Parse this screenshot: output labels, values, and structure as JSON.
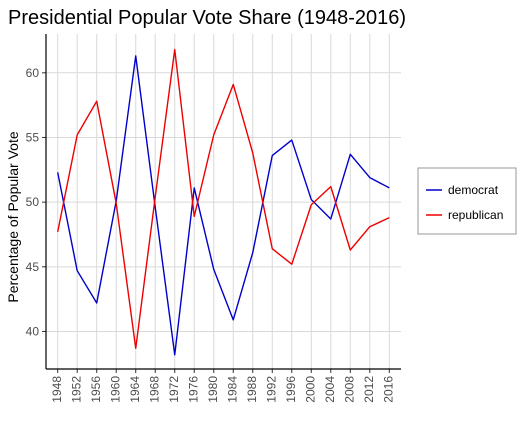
{
  "chart_data": {
    "type": "line",
    "title": "Presidential Popular Vote Share (1948-2016)",
    "xlabel": "",
    "ylabel": "Percentage of Popular Vote",
    "x": [
      1948,
      1952,
      1956,
      1960,
      1964,
      1968,
      1972,
      1976,
      1980,
      1984,
      1988,
      1992,
      1996,
      2000,
      2004,
      2008,
      2012,
      2016
    ],
    "x_tick_labels": [
      "1948",
      "1952",
      "1956",
      "1960",
      "1964",
      "1968",
      "1972",
      "1976",
      "1980",
      "1984",
      "1988",
      "1992",
      "1996",
      "2000",
      "2004",
      "2008",
      "2012",
      "2016"
    ],
    "y_tick_labels": [
      "40",
      "45",
      "50",
      "55",
      "60"
    ],
    "y_ticks": [
      40,
      45,
      50,
      55,
      60
    ],
    "ylim": [
      37.1,
      63.0
    ],
    "xlim": [
      1945.6,
      2018.4
    ],
    "grid": true,
    "legend_position": "right",
    "series": [
      {
        "name": "democrat",
        "color": "#0000cc",
        "values": [
          52.3,
          44.7,
          42.2,
          50.1,
          61.3,
          49.6,
          38.2,
          51.1,
          44.8,
          40.9,
          46.1,
          53.6,
          54.8,
          50.2,
          48.7,
          53.7,
          51.9,
          51.1
        ]
      },
      {
        "name": "republican",
        "color": "#ee0000",
        "values": [
          47.7,
          55.2,
          57.8,
          49.9,
          38.7,
          50.4,
          61.8,
          48.9,
          55.2,
          59.1,
          53.8,
          46.4,
          45.2,
          49.8,
          51.2,
          46.3,
          48.1,
          48.8
        ]
      }
    ]
  }
}
